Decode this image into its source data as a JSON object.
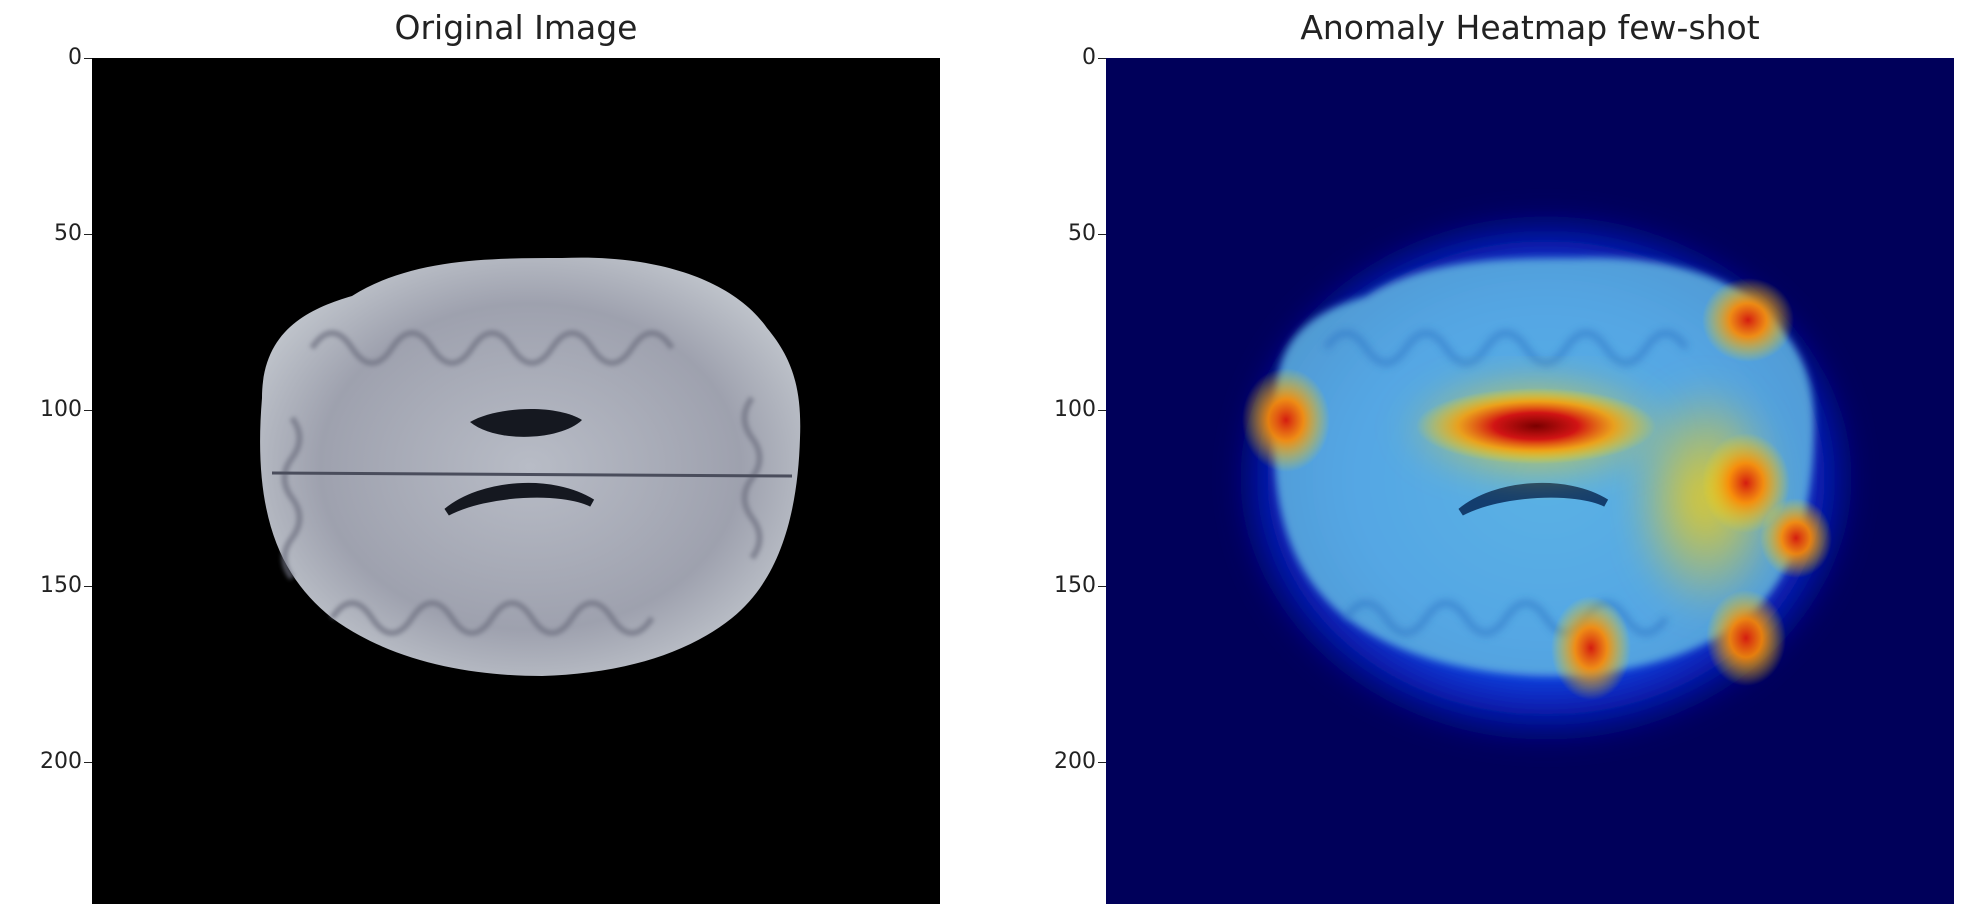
{
  "figure": {
    "panels": [
      {
        "title": "Original Image",
        "yticks": [
          "0",
          "50",
          "100",
          "150",
          "200"
        ],
        "colormap": "gray"
      },
      {
        "title": "Anomaly Heatmap few-shot",
        "yticks": [
          "0",
          "50",
          "100",
          "150",
          "200"
        ],
        "colormap": "jet overlay"
      }
    ]
  },
  "colors": {
    "background_left": "#000000",
    "background_right": "#00005a",
    "hot": "#8b0000",
    "warm": "#ffd000",
    "cool": "#2fa4ff"
  }
}
